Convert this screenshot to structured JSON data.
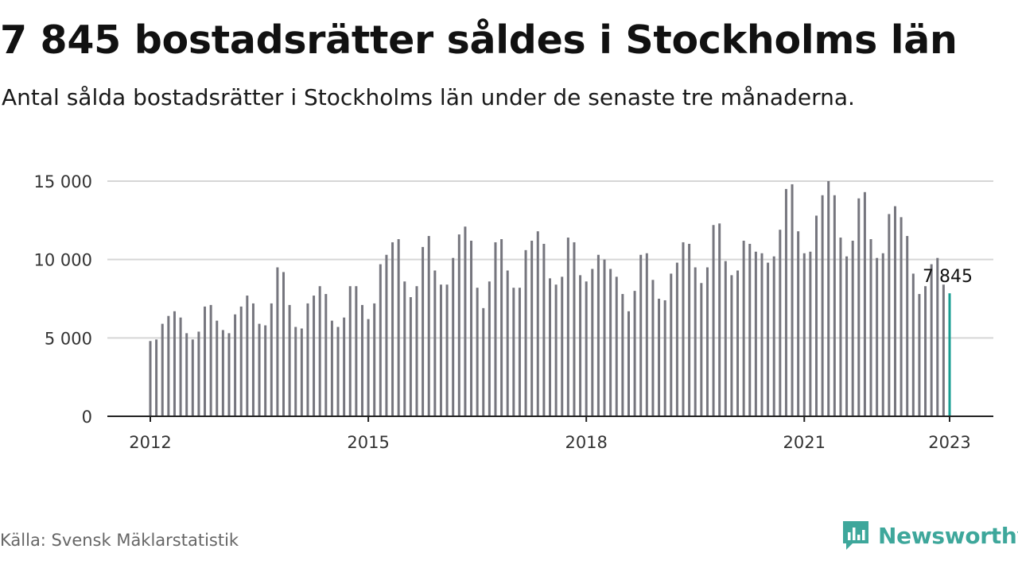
{
  "header": {
    "title": "7 845 bostadsrätter såldes i Stockholms län",
    "subtitle": "Antal sålda bostadsrätter i Stockholms län under de senaste tre månaderna."
  },
  "footer": {
    "source": "Källa: Svensk Mäklarstatistik",
    "brand": "Newsworthy"
  },
  "colors": {
    "bar": "#76767e",
    "highlight": "#179e92",
    "brand": "#3ea79b",
    "grid": "#d6d6d6",
    "axis": "#222222"
  },
  "icons": {
    "brand_logo": "bar-chart-speech-bubble-icon"
  },
  "chart_data": {
    "type": "bar",
    "title": "7 845 bostadsrätter såldes i Stockholms län",
    "xlabel": "",
    "ylabel": "",
    "x_start": "2012-01",
    "x_end": "2023-01",
    "ylim": [
      0,
      15000
    ],
    "yticks": [
      0,
      5000,
      10000,
      15000
    ],
    "ytick_labels": [
      "0",
      "5 000",
      "10 000",
      "15 000"
    ],
    "xticks": [
      "2012",
      "2015",
      "2018",
      "2021",
      "2023"
    ],
    "grid": true,
    "highlight_label": "7 845",
    "series": [
      {
        "values": [
          4800,
          4900,
          5900,
          6400,
          6700,
          6300,
          5300,
          4900,
          5400,
          7000,
          7100,
          6100,
          5500,
          5300,
          6500,
          7000,
          7700,
          7200,
          5900,
          5800,
          7200,
          9500,
          9200,
          7100,
          5700,
          5600,
          7200,
          7700,
          8300,
          7800,
          6100,
          5700,
          6300,
          8300,
          8300,
          7100,
          6200,
          7200,
          9700,
          10300,
          11100,
          11300,
          8600,
          7600,
          8300,
          10800,
          11500,
          9300,
          8400,
          8400,
          10100,
          11600,
          12100,
          11200,
          8200,
          6900,
          8600,
          11100,
          11300,
          9300,
          8200,
          8200,
          10600,
          11200,
          11800,
          11000,
          8800,
          8400,
          8900,
          11400,
          11100,
          9000,
          8600,
          9400,
          10300,
          10000,
          9400,
          8900,
          7800,
          6700,
          8000,
          10300,
          10400,
          8700,
          7500,
          7400,
          9100,
          9800,
          11100,
          11000,
          9500,
          8500,
          9500,
          12200,
          12300,
          9900,
          9000,
          9300,
          11200,
          11000,
          10500,
          10400,
          9800,
          10200,
          11900,
          14500,
          14800,
          11800,
          10400,
          10500,
          12800,
          14100,
          15000,
          14100,
          11400,
          10200,
          11200,
          13900,
          14300,
          11300,
          10100,
          10400,
          12900,
          13400,
          12700,
          11500,
          9100,
          7800,
          8300,
          9700,
          10100,
          8400,
          7845
        ]
      }
    ]
  }
}
